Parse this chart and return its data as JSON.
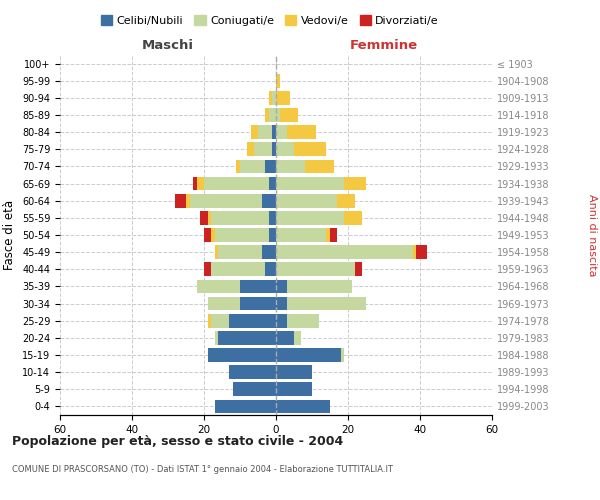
{
  "age_groups": [
    "0-4",
    "5-9",
    "10-14",
    "15-19",
    "20-24",
    "25-29",
    "30-34",
    "35-39",
    "40-44",
    "45-49",
    "50-54",
    "55-59",
    "60-64",
    "65-69",
    "70-74",
    "75-79",
    "80-84",
    "85-89",
    "90-94",
    "95-99",
    "100+"
  ],
  "birth_years": [
    "1999-2003",
    "1994-1998",
    "1989-1993",
    "1984-1988",
    "1979-1983",
    "1974-1978",
    "1969-1973",
    "1964-1968",
    "1959-1963",
    "1954-1958",
    "1949-1953",
    "1944-1948",
    "1939-1943",
    "1934-1938",
    "1929-1933",
    "1924-1928",
    "1919-1923",
    "1914-1918",
    "1909-1913",
    "1904-1908",
    "≤ 1903"
  ],
  "maschi": {
    "celibi": [
      17,
      12,
      13,
      19,
      16,
      13,
      10,
      10,
      3,
      4,
      2,
      2,
      4,
      2,
      3,
      1,
      1,
      0,
      0,
      0,
      0
    ],
    "coniugati": [
      0,
      0,
      0,
      0,
      1,
      5,
      9,
      12,
      15,
      12,
      15,
      16,
      20,
      18,
      7,
      5,
      4,
      2,
      1,
      0,
      0
    ],
    "vedovi": [
      0,
      0,
      0,
      0,
      0,
      1,
      0,
      0,
      0,
      1,
      1,
      1,
      1,
      2,
      1,
      2,
      2,
      1,
      1,
      0,
      0
    ],
    "divorziati": [
      0,
      0,
      0,
      0,
      0,
      0,
      0,
      0,
      2,
      0,
      2,
      2,
      3,
      1,
      0,
      0,
      0,
      0,
      0,
      0,
      0
    ]
  },
  "femmine": {
    "nubili": [
      15,
      10,
      10,
      18,
      5,
      3,
      3,
      3,
      0,
      0,
      0,
      0,
      0,
      0,
      0,
      0,
      0,
      0,
      0,
      0,
      0
    ],
    "coniugate": [
      0,
      0,
      0,
      1,
      2,
      9,
      22,
      18,
      22,
      38,
      14,
      19,
      17,
      19,
      8,
      5,
      3,
      1,
      0,
      0,
      0
    ],
    "vedove": [
      0,
      0,
      0,
      0,
      0,
      0,
      0,
      0,
      0,
      1,
      1,
      5,
      5,
      6,
      8,
      9,
      8,
      5,
      4,
      1,
      0
    ],
    "divorziate": [
      0,
      0,
      0,
      0,
      0,
      0,
      0,
      0,
      2,
      3,
      2,
      0,
      0,
      0,
      0,
      0,
      0,
      0,
      0,
      0,
      0
    ]
  },
  "colors": {
    "celibi": "#3d6fa3",
    "coniugati": "#c5d8a0",
    "vedovi": "#f5c842",
    "divorziati": "#cc2222"
  },
  "xlim": 60,
  "title": "Popolazione per età, sesso e stato civile - 2004",
  "subtitle": "COMUNE DI PRASCORSANO (TO) - Dati ISTAT 1° gennaio 2004 - Elaborazione TUTTITALIA.IT",
  "ylabel_left": "Fasce di età",
  "ylabel_right": "Anni di nascita",
  "legend_labels": [
    "Celibi/Nubili",
    "Coniugati/e",
    "Vedovi/e",
    "Divorziati/e"
  ]
}
